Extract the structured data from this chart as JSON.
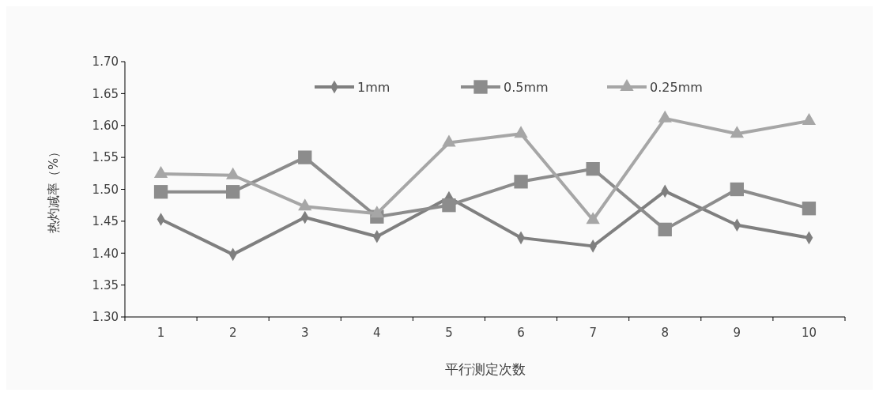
{
  "chart_data": {
    "type": "line",
    "xlabel": "平行测定次数",
    "ylabel": "热灼减率（%）",
    "categories": [
      "1",
      "2",
      "3",
      "4",
      "5",
      "6",
      "7",
      "8",
      "9",
      "10"
    ],
    "ylim": [
      1.3,
      1.7
    ],
    "yticks": [
      {
        "value": 1.3,
        "label": "1.30"
      },
      {
        "value": 1.35,
        "label": "1.35"
      },
      {
        "value": 1.4,
        "label": "1.40"
      },
      {
        "value": 1.45,
        "label": "1.45"
      },
      {
        "value": 1.5,
        "label": "1.50"
      },
      {
        "value": 1.55,
        "label": "1.55"
      },
      {
        "value": 1.6,
        "label": "1.60"
      },
      {
        "value": 1.65,
        "label": "1.65"
      },
      {
        "value": 1.7,
        "label": "1.70"
      }
    ],
    "grid": false,
    "legend": "top",
    "series": [
      {
        "name": "1mm",
        "color": "#7f7f7f",
        "marker": "diamond",
        "values": [
          1.453,
          1.398,
          1.456,
          1.426,
          1.487,
          1.424,
          1.411,
          1.497,
          1.444,
          1.424
        ]
      },
      {
        "name": "0.5mm",
        "color": "#8c8c8c",
        "marker": "square",
        "values": [
          1.496,
          1.496,
          1.55,
          1.457,
          1.475,
          1.512,
          1.532,
          1.437,
          1.5,
          1.47
        ]
      },
      {
        "name": "0.25mm",
        "color": "#a6a6a6",
        "marker": "triangle",
        "values": [
          1.524,
          1.522,
          1.473,
          1.462,
          1.573,
          1.587,
          1.452,
          1.611,
          1.587,
          1.607
        ]
      }
    ]
  }
}
